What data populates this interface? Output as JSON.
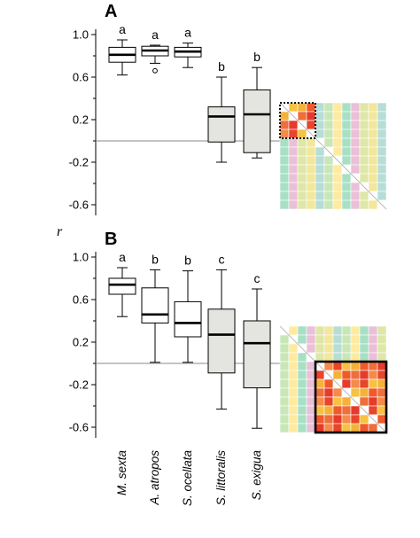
{
  "chart_data": [
    {
      "type": "boxplot",
      "panel_label": "A",
      "ylabel": "r",
      "ylim": [
        -0.7,
        1.05
      ],
      "yticks": [
        "1.0",
        "0.6",
        "0.2",
        "-0.2",
        "-0.6"
      ],
      "ytick_values": [
        1.0,
        0.6,
        0.2,
        -0.2,
        -0.6
      ],
      "reference_line": 0,
      "categories": [
        "M. sexta",
        "A. atropos",
        "S. ocellata",
        "S. littoralis",
        "S. exigua"
      ],
      "box_colors": [
        "#ffffff",
        "#ffffff",
        "#ffffff",
        "#e4e4e0",
        "#e4e4e0"
      ],
      "boxes": [
        {
          "group": "a",
          "min": 0.62,
          "q1": 0.74,
          "median": 0.81,
          "q3": 0.88,
          "max": 0.95,
          "outliers": []
        },
        {
          "group": "a",
          "min": 0.73,
          "q1": 0.8,
          "median": 0.85,
          "q3": 0.89,
          "max": 0.9,
          "outliers": [
            0.66
          ]
        },
        {
          "group": "a",
          "min": 0.69,
          "q1": 0.79,
          "median": 0.84,
          "q3": 0.88,
          "max": 0.92,
          "outliers": []
        },
        {
          "group": "b",
          "min": -0.2,
          "q1": -0.01,
          "median": 0.23,
          "q3": 0.32,
          "max": 0.6,
          "outliers": []
        },
        {
          "group": "b",
          "min": -0.16,
          "q1": -0.11,
          "median": 0.25,
          "q3": 0.48,
          "max": 0.69,
          "outliers": []
        }
      ],
      "inset": {
        "highlight": "top-left",
        "highlight_style": "dotted",
        "block_size": 4
      }
    },
    {
      "type": "boxplot",
      "panel_label": "B",
      "ylabel": "r",
      "ylim": [
        -0.7,
        1.05
      ],
      "yticks": [
        "1.0",
        "0.6",
        "0.2",
        "-0.2",
        "-0.6"
      ],
      "ytick_values": [
        1.0,
        0.6,
        0.2,
        -0.2,
        -0.6
      ],
      "reference_line": 0,
      "categories": [
        "M. sexta",
        "A. atropos",
        "S. ocellata",
        "S. littoralis",
        "S. exigua"
      ],
      "box_colors": [
        "#ffffff",
        "#ffffff",
        "#ffffff",
        "#e4e4e0",
        "#e4e4e0"
      ],
      "boxes": [
        {
          "group": "a",
          "min": 0.44,
          "q1": 0.65,
          "median": 0.74,
          "q3": 0.8,
          "max": 0.9,
          "outliers": []
        },
        {
          "group": "b",
          "min": 0.01,
          "q1": 0.38,
          "median": 0.46,
          "q3": 0.71,
          "max": 0.88,
          "outliers": []
        },
        {
          "group": "b",
          "min": 0.01,
          "q1": 0.25,
          "median": 0.38,
          "q3": 0.58,
          "max": 0.87,
          "outliers": []
        },
        {
          "group": "c",
          "min": -0.43,
          "q1": -0.09,
          "median": 0.27,
          "q3": 0.51,
          "max": 0.88,
          "outliers": []
        },
        {
          "group": "c",
          "min": -0.61,
          "q1": -0.23,
          "median": 0.19,
          "q3": 0.4,
          "max": 0.7,
          "outliers": []
        }
      ],
      "inset": {
        "highlight": "bottom-right",
        "highlight_style": "solid",
        "block_size": 8
      }
    }
  ]
}
